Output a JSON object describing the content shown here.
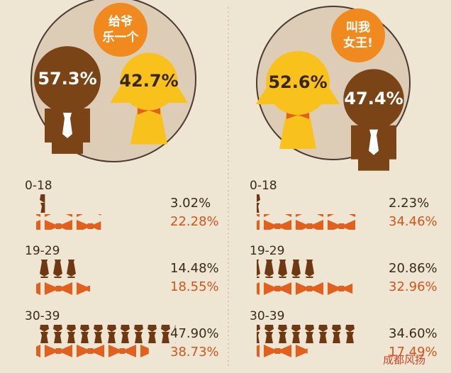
{
  "chart_data": [
    {
      "type": "pie",
      "badge": [
        "给爷",
        "乐一个"
      ],
      "values": [
        57.3,
        42.7
      ],
      "value_labels": [
        "57.3%",
        "42.7%"
      ],
      "colors": [
        "#7b4416",
        "#f8c11c"
      ]
    },
    {
      "type": "pictogram",
      "categories": [
        "0-18",
        "19-29",
        "30-39"
      ],
      "series": [
        {
          "color": "#6e3812",
          "values": [
            3.02,
            14.48,
            47.9
          ],
          "value_labels": [
            "3.02%",
            "14.48%",
            "47.90%"
          ]
        },
        {
          "color": "#e2601d",
          "values": [
            22.28,
            18.55,
            38.73
          ],
          "value_labels": [
            "22.28%",
            "18.55%",
            "38.73%"
          ]
        }
      ]
    },
    {
      "type": "pie",
      "badge": [
        "叫我",
        "女王!"
      ],
      "values": [
        52.6,
        47.4
      ],
      "value_labels": [
        "52.6%",
        "47.4%"
      ],
      "colors": [
        "#f8c11c",
        "#7b4416"
      ]
    },
    {
      "type": "pictogram",
      "categories": [
        "0-18",
        "19-29",
        "30-39"
      ],
      "series": [
        {
          "color": "#6e3812",
          "values": [
            2.23,
            20.86,
            34.6
          ],
          "value_labels": [
            "2.23%",
            "20.86%",
            "34.60%"
          ]
        },
        {
          "color": "#e2601d",
          "values": [
            34.46,
            32.96,
            17.49
          ],
          "value_labels": [
            "34.46%",
            "32.96%",
            "17.49%"
          ]
        }
      ]
    }
  ],
  "watermark": "成都风扬"
}
